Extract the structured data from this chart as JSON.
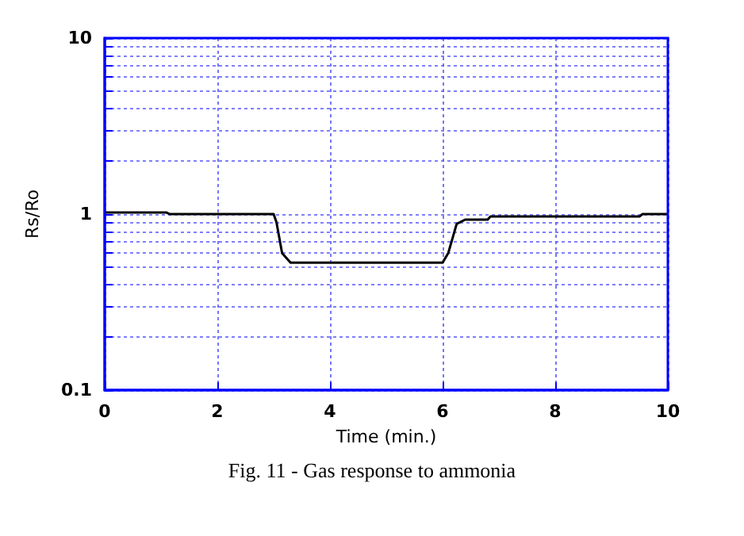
{
  "chart_data": {
    "type": "line",
    "xlabel": "Time (min.)",
    "ylabel": "Rs/Ro",
    "annotations": [
      "Fig. 11 - Gas response to ammonia"
    ],
    "series": [
      {
        "color": "#000000",
        "x": [
          0,
          1.1,
          1.15,
          3.0,
          3.05,
          3.15,
          3.3,
          6.0,
          6.1,
          6.25,
          6.4,
          6.8,
          6.85,
          9.5,
          9.55,
          10
        ],
        "values": [
          1.02,
          1.02,
          1.0,
          1.0,
          0.9,
          0.6,
          0.53,
          0.53,
          0.6,
          0.88,
          0.93,
          0.93,
          0.97,
          0.97,
          1.0,
          1.0
        ]
      }
    ],
    "xlim": [
      0,
      10
    ],
    "xticks": [
      0,
      2,
      4,
      6,
      8,
      10
    ],
    "ylim": [
      0.1,
      10
    ],
    "yticks": [
      0.1,
      {
        "value": 0.2,
        "label": null
      },
      {
        "value": 0.3,
        "label": null
      },
      {
        "value": 0.4,
        "label": null
      },
      {
        "value": 0.5,
        "label": null
      },
      {
        "value": 0.6,
        "label": null
      },
      {
        "value": 0.7,
        "label": null
      },
      {
        "value": 0.8,
        "label": null
      },
      {
        "value": 0.9,
        "label": null
      },
      1,
      {
        "value": 2,
        "label": null
      },
      {
        "value": 3,
        "label": null
      },
      {
        "value": 4,
        "label": null
      },
      {
        "value": 5,
        "label": null
      },
      {
        "value": 6,
        "label": null
      },
      {
        "value": 7,
        "label": null
      },
      {
        "value": 8,
        "label": null
      },
      {
        "value": 9,
        "label": null
      },
      10
    ],
    "log": "y",
    "grid": true,
    "marker": "none",
    "line_style": "solid"
  }
}
